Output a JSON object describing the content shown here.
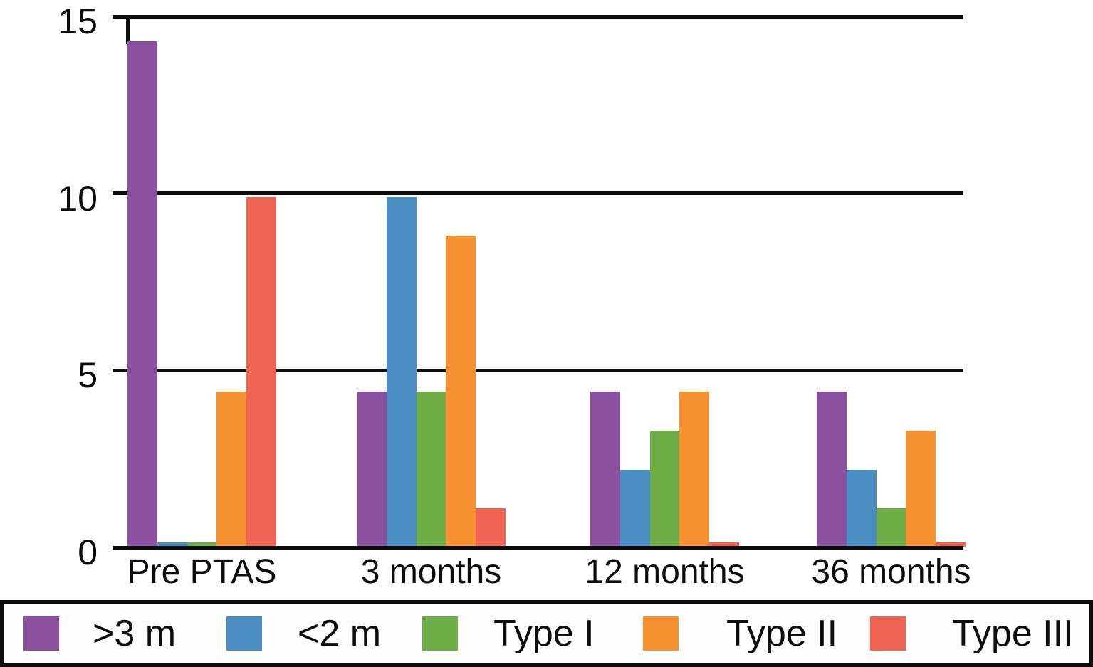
{
  "chart_data": {
    "type": "bar",
    "categories": [
      "Pre PTAS",
      "3 months",
      "12 months",
      "36 months"
    ],
    "series": [
      {
        "name": ">3 m",
        "color": "#8b4fa0",
        "values": [
          14.3,
          4.4,
          4.4,
          4.4
        ]
      },
      {
        "name": "<2 m",
        "color": "#4a8dc2",
        "values": [
          0.15,
          9.9,
          2.2,
          2.2
        ]
      },
      {
        "name": "Type I",
        "color": "#6fad46",
        "values": [
          0.15,
          4.4,
          3.3,
          1.1
        ]
      },
      {
        "name": "Type II",
        "color": "#f59130",
        "values": [
          4.4,
          8.8,
          4.4,
          3.3
        ]
      },
      {
        "name": "Type III",
        "color": "#ee6351",
        "values": [
          9.9,
          1.1,
          0.15,
          0.15
        ]
      }
    ],
    "y_axis": {
      "min": 0,
      "max": 15,
      "tick_labels": [
        "0",
        "5",
        "10",
        "15"
      ],
      "ticks": [
        0,
        5,
        10,
        15
      ]
    },
    "grid": "horizontal gridlines at 0, 5, 10, 15",
    "legend_position": "bottom",
    "legend_entries": [
      ">3 m",
      "<2 m",
      "Type I",
      "Type II",
      "Type III"
    ]
  },
  "colors": {
    "axis_line": "#0d0d0d",
    "background": "#ffffff",
    "legend_background": "#fcfdfc",
    "purple": "#8b4fa0",
    "blue": "#4a8dc2",
    "green": "#6fad46",
    "orange": "#f59130",
    "red": "#ee6351"
  }
}
